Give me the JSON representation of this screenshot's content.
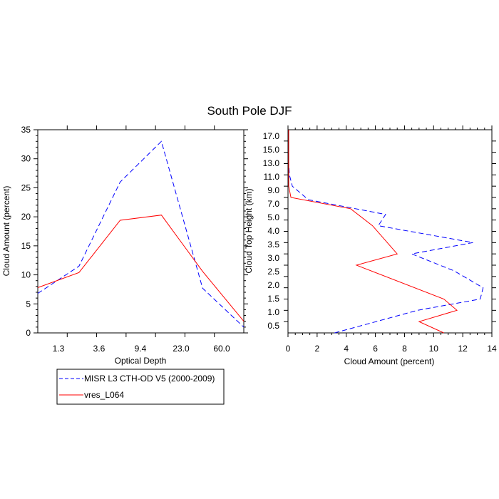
{
  "figure": {
    "title": "South Pole DJF"
  },
  "chart_data": [
    {
      "type": "line",
      "title": "",
      "xlabel": "Optical Depth",
      "ylabel": "Cloud Amount (percent)",
      "x_tick_labels": [
        "1.3",
        "3.6",
        "9.4",
        "23.0",
        "60.0"
      ],
      "x_bins": 7,
      "ylim": [
        0,
        35
      ],
      "y_ticks": [
        0,
        5,
        10,
        15,
        20,
        25,
        30,
        35
      ],
      "series": [
        {
          "name": "MISR L3 CTH-OD V5 (2000-2009)",
          "color": "#0000ff",
          "style": "dashed",
          "values": [
            6.8,
            11.5,
            26.0,
            33.0,
            7.7,
            1.0
          ]
        },
        {
          "name": "vres_L064",
          "color": "#ff0000",
          "style": "solid",
          "values": [
            7.8,
            10.4,
            19.4,
            20.3,
            10.6,
            2.0
          ]
        }
      ]
    },
    {
      "type": "line",
      "title": "",
      "xlabel": "Cloud Amount (percent)",
      "ylabel": "Cloud Top Height (km)",
      "xlim": [
        0,
        14
      ],
      "x_ticks": [
        0,
        2,
        4,
        6,
        8,
        10,
        12,
        14
      ],
      "y_tick_labels": [
        "0.5",
        "1.0",
        "1.5",
        "2.0",
        "2.5",
        "3.0",
        "3.5",
        "4.0",
        "5.0",
        "7.0",
        "9.0",
        "11.0",
        "13.0",
        "15.0",
        "17.0"
      ],
      "series": [
        {
          "name": "MISR L3 CTH-OD V5 (2000-2009)",
          "color": "#0000ff",
          "style": "dashed",
          "points": [
            [
              3.2,
              0
            ],
            [
              8.9,
              2.0
            ],
            [
              13.2,
              3.0
            ],
            [
              13.4,
              4.0
            ],
            [
              11.4,
              5.5
            ],
            [
              8.5,
              7.0
            ],
            [
              12.7,
              8.0
            ],
            [
              6.2,
              9.5
            ],
            [
              6.7,
              10.5
            ],
            [
              1.4,
              11.8
            ],
            [
              0.3,
              13.0
            ],
            [
              0.1,
              14.0
            ],
            [
              0.05,
              15.0
            ],
            [
              0.05,
              16.0
            ],
            [
              0.05,
              17.0
            ],
            [
              0.05,
              18.0
            ]
          ]
        },
        {
          "name": "vres_L064",
          "color": "#ff0000",
          "style": "solid",
          "points": [
            [
              10.7,
              0
            ],
            [
              9.0,
              1.0
            ],
            [
              11.6,
              2.0
            ],
            [
              10.7,
              3.0
            ],
            [
              4.7,
              6.0
            ],
            [
              7.5,
              7.0
            ],
            [
              5.8,
              9.5
            ],
            [
              4.3,
              11.0
            ],
            [
              0.2,
              12.0
            ],
            [
              0.05,
              13.0
            ],
            [
              0.05,
              14.0
            ],
            [
              0.05,
              15.0
            ],
            [
              0.05,
              16.0
            ],
            [
              0.05,
              17.0
            ],
            [
              0.05,
              18.0
            ]
          ]
        }
      ]
    }
  ]
}
